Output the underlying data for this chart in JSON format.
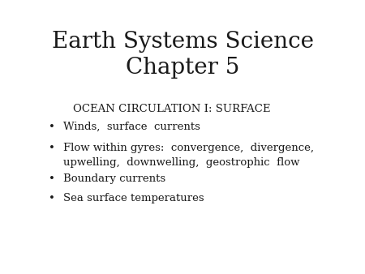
{
  "title_line1": "Earth Systems Science",
  "title_line2": "Chapter 5",
  "subtitle": "OCEAN CIRCULATION I: SURFACE",
  "bullet_points": [
    "Winds,  surface  currents",
    "Flow within gyres:  convergence,  divergence,\nupwelling,  downwelling,  geostrophic  flow",
    "Boundary currents",
    "Sea surface temperatures"
  ],
  "background_color": "#ffffff",
  "text_color": "#1a1a1a",
  "title_fontsize": 20,
  "subtitle_fontsize": 9.5,
  "bullet_fontsize": 9.5,
  "title_font_weight": "normal",
  "title_font_family": "DejaVu Serif",
  "body_font_family": "DejaVu Serif"
}
